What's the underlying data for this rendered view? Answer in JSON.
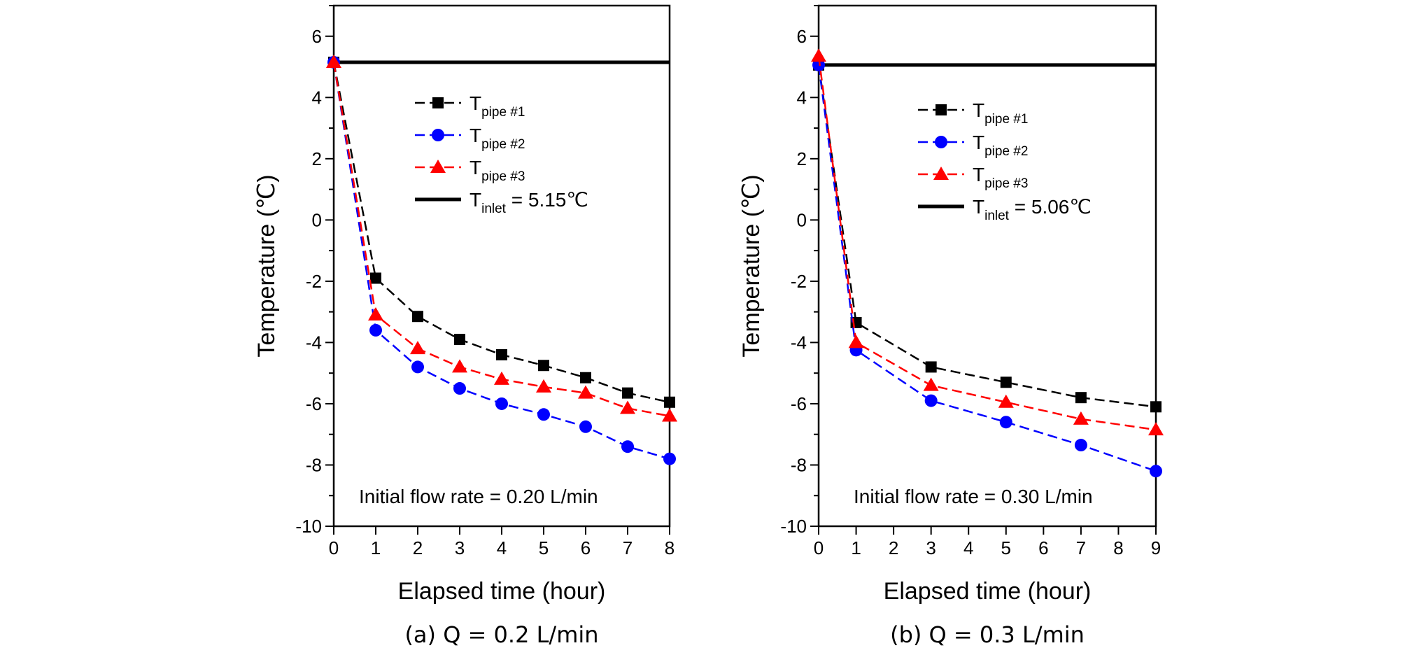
{
  "chart_data": [
    {
      "type": "line",
      "caption": "(a) Q = 0.2 L/min",
      "xlabel": "Elapsed time (hour)",
      "ylabel": "Temperature (℃)",
      "xlim": [
        0,
        8
      ],
      "ylim": [
        -10,
        7
      ],
      "xticks": [
        0,
        1,
        2,
        3,
        4,
        5,
        6,
        7,
        8
      ],
      "yticks": [
        -10,
        -8,
        -6,
        -4,
        -2,
        0,
        2,
        4,
        6
      ],
      "annotation": "Initial flow rate = 0.20 L/min",
      "inlet": {
        "value": 5.15,
        "label_main": "T",
        "label_sub": "inlet",
        "label_rest": " = 5.15℃"
      },
      "series": [
        {
          "name": "pipe #1",
          "label_main": "T",
          "label_sub": "pipe #1",
          "color": "#000000",
          "marker": "square",
          "x": [
            0,
            1,
            2,
            3,
            4,
            5,
            6,
            7,
            8
          ],
          "values": [
            5.15,
            -1.9,
            -3.15,
            -3.9,
            -4.4,
            -4.75,
            -5.15,
            -5.65,
            -5.95
          ]
        },
        {
          "name": "pipe #2",
          "label_main": "T",
          "label_sub": "pipe #2",
          "color": "#0000ff",
          "marker": "circle",
          "x": [
            0,
            1,
            2,
            3,
            4,
            5,
            6,
            7,
            8
          ],
          "values": [
            5.15,
            -3.6,
            -4.8,
            -5.5,
            -6.0,
            -6.35,
            -6.75,
            -7.4,
            -7.8
          ]
        },
        {
          "name": "pipe #3",
          "label_main": "T",
          "label_sub": "pipe #3",
          "color": "#ff0000",
          "marker": "triangle",
          "x": [
            0,
            1,
            2,
            3,
            4,
            5,
            6,
            7,
            8
          ],
          "values": [
            5.15,
            -3.1,
            -4.2,
            -4.8,
            -5.2,
            -5.45,
            -5.65,
            -6.15,
            -6.4
          ]
        }
      ]
    },
    {
      "type": "line",
      "caption": "(b) Q = 0.3 L/min",
      "xlabel": "Elapsed time (hour)",
      "ylabel": "Temperature (℃)",
      "xlim": [
        0,
        9
      ],
      "ylim": [
        -10,
        7
      ],
      "xticks": [
        0,
        1,
        2,
        3,
        4,
        5,
        6,
        7,
        8,
        9
      ],
      "yticks": [
        -10,
        -8,
        -6,
        -4,
        -2,
        0,
        2,
        4,
        6
      ],
      "annotation": "Initial flow rate = 0.30 L/min",
      "inlet": {
        "value": 5.06,
        "label_main": "T",
        "label_sub": "inlet",
        "label_rest": " = 5.06℃"
      },
      "series": [
        {
          "name": "pipe #1",
          "label_main": "T",
          "label_sub": "pipe #1",
          "color": "#000000",
          "marker": "square",
          "x": [
            0,
            1,
            3,
            5,
            7,
            9
          ],
          "values": [
            5.06,
            -3.35,
            -4.8,
            -5.3,
            -5.8,
            -6.1
          ]
        },
        {
          "name": "pipe #2",
          "label_main": "T",
          "label_sub": "pipe #2",
          "color": "#0000ff",
          "marker": "circle",
          "x": [
            0,
            1,
            3,
            5,
            7,
            9
          ],
          "values": [
            5.06,
            -4.25,
            -5.9,
            -6.6,
            -7.35,
            -8.2
          ]
        },
        {
          "name": "pipe #3",
          "label_main": "T",
          "label_sub": "pipe #3",
          "color": "#ff0000",
          "marker": "triangle",
          "x": [
            0,
            1,
            3,
            5,
            7,
            9
          ],
          "values": [
            5.35,
            -4.0,
            -5.4,
            -5.95,
            -6.5,
            -6.85
          ]
        }
      ]
    }
  ]
}
